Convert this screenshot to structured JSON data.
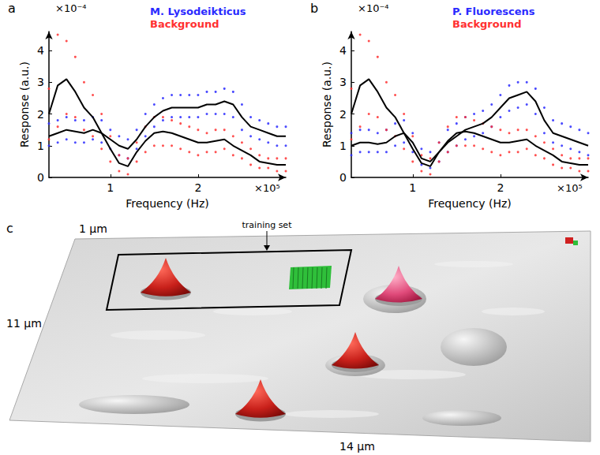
{
  "chart_data": [
    {
      "type": "scatter",
      "panel": "a",
      "x_label": "Frequency (Hz)",
      "y_label": "Response (a.u.)",
      "x_unit_label": "×10⁵",
      "y_unit_label": "×10⁻⁴",
      "xlim": [
        0.3,
        3.0
      ],
      "xticks": [
        1,
        2
      ],
      "ylim": [
        0,
        4.6
      ],
      "yticks": [
        0,
        1,
        2,
        3,
        4
      ],
      "grid": false,
      "legend": "top",
      "series": [
        {
          "name": "M. Lysodeikticus",
          "type": "scatter",
          "color": "#2a2aff",
          "marker": "dot",
          "x": [
            0.3,
            0.4,
            0.5,
            0.6,
            0.7,
            0.8,
            0.9,
            1.0,
            1.1,
            1.2,
            1.3,
            1.4,
            1.5,
            1.6,
            1.7,
            1.8,
            1.9,
            2.0,
            2.1,
            2.2,
            2.3,
            2.4,
            2.5,
            2.6,
            2.7,
            2.8,
            2.9,
            3.0,
            0.3,
            0.4,
            0.5,
            0.6,
            0.7,
            0.8,
            0.9,
            1.0,
            1.1,
            1.2,
            1.3,
            1.4,
            1.5,
            1.6,
            1.7,
            1.8,
            1.9,
            2.0,
            2.1,
            2.2,
            2.3,
            2.4,
            2.5,
            2.6,
            2.7,
            2.8,
            2.9,
            3.0
          ],
          "values": [
            1.7,
            1.8,
            1.9,
            1.8,
            1.8,
            1.9,
            1.8,
            1.5,
            1.3,
            1.2,
            1.5,
            2.0,
            2.3,
            2.5,
            2.6,
            2.6,
            2.6,
            2.6,
            2.7,
            2.7,
            2.8,
            2.7,
            2.3,
            1.9,
            1.8,
            1.7,
            1.6,
            1.6,
            1.0,
            1.1,
            1.2,
            1.1,
            1.1,
            1.2,
            1.1,
            0.9,
            0.7,
            0.6,
            0.9,
            1.3,
            1.6,
            1.8,
            1.9,
            1.9,
            1.9,
            1.9,
            2.0,
            2.0,
            2.0,
            1.9,
            1.5,
            1.3,
            1.2,
            1.1,
            1.0,
            1.0
          ]
        },
        {
          "name": "Background",
          "type": "scatter",
          "color": "#ff3030",
          "marker": "dot",
          "x": [
            0.3,
            0.4,
            0.5,
            0.6,
            0.7,
            0.8,
            0.9,
            1.0,
            1.1,
            1.2,
            1.3,
            1.4,
            1.5,
            1.6,
            1.7,
            1.8,
            1.9,
            2.0,
            2.1,
            2.2,
            2.3,
            2.4,
            2.5,
            2.6,
            2.7,
            2.8,
            2.9,
            3.0,
            0.3,
            0.4,
            0.5,
            0.6,
            0.7,
            0.8,
            0.9,
            1.0,
            1.1,
            1.2,
            1.3,
            1.4,
            1.5,
            1.6,
            1.7,
            1.8,
            1.9,
            2.0,
            2.1,
            2.2,
            2.3,
            2.4,
            2.5,
            2.6,
            2.7,
            2.8,
            2.9,
            3.0
          ],
          "values": [
            2.8,
            4.5,
            4.3,
            3.8,
            3.0,
            2.6,
            2.0,
            1.3,
            0.7,
            0.6,
            1.1,
            1.6,
            1.9,
            1.9,
            1.8,
            1.7,
            1.6,
            1.5,
            1.4,
            1.5,
            1.5,
            1.3,
            1.1,
            0.9,
            0.7,
            0.6,
            0.6,
            0.6,
            1.2,
            1.6,
            2.0,
            1.9,
            1.5,
            1.3,
            0.9,
            0.5,
            0.2,
            0.1,
            0.5,
            0.8,
            1.0,
            1.0,
            1.0,
            0.9,
            0.8,
            0.7,
            0.8,
            0.8,
            0.9,
            0.7,
            0.6,
            0.4,
            0.3,
            0.3,
            0.2,
            0.2
          ]
        },
        {
          "type": "line",
          "color": "#000000",
          "line_style": "solid",
          "x": [
            0.3,
            0.4,
            0.5,
            0.6,
            0.7,
            0.8,
            0.9,
            1.0,
            1.1,
            1.2,
            1.3,
            1.4,
            1.5,
            1.6,
            1.7,
            1.8,
            1.9,
            2.0,
            2.1,
            2.2,
            2.3,
            2.4,
            2.5,
            2.6,
            2.7,
            2.8,
            2.9,
            3.0
          ],
          "values": [
            1.3,
            1.4,
            1.5,
            1.45,
            1.4,
            1.5,
            1.4,
            1.2,
            1.0,
            0.9,
            1.2,
            1.6,
            1.9,
            2.1,
            2.2,
            2.2,
            2.2,
            2.2,
            2.3,
            2.3,
            2.4,
            2.3,
            1.9,
            1.6,
            1.5,
            1.4,
            1.3,
            1.3
          ]
        },
        {
          "type": "line",
          "color": "#000000",
          "line_style": "solid",
          "x": [
            0.3,
            0.4,
            0.5,
            0.6,
            0.7,
            0.8,
            0.9,
            1.0,
            1.1,
            1.2,
            1.3,
            1.4,
            1.5,
            1.6,
            1.7,
            1.8,
            1.9,
            2.0,
            2.1,
            2.2,
            2.3,
            2.4,
            2.5,
            2.6,
            2.7,
            2.8,
            2.9,
            3.0
          ],
          "values": [
            2.0,
            2.9,
            3.1,
            2.7,
            2.2,
            1.9,
            1.4,
            0.9,
            0.45,
            0.35,
            0.8,
            1.15,
            1.4,
            1.45,
            1.4,
            1.3,
            1.2,
            1.1,
            1.1,
            1.15,
            1.2,
            1.0,
            0.85,
            0.7,
            0.5,
            0.45,
            0.4,
            0.4
          ]
        }
      ]
    },
    {
      "type": "scatter",
      "panel": "b",
      "x_label": "Frequency (Hz)",
      "y_label": "Response (a.u.)",
      "x_unit_label": "×10⁵",
      "y_unit_label": "×10⁻⁴",
      "xlim": [
        0.3,
        3.0
      ],
      "xticks": [
        1,
        2
      ],
      "ylim": [
        0,
        4.6
      ],
      "yticks": [
        0,
        1,
        2,
        3,
        4
      ],
      "grid": false,
      "legend": "top",
      "series": [
        {
          "name": "P. Fluorescens",
          "type": "scatter",
          "color": "#2a2aff",
          "marker": "dot",
          "x": [
            0.3,
            0.4,
            0.5,
            0.6,
            0.7,
            0.8,
            0.9,
            1.0,
            1.1,
            1.2,
            1.3,
            1.4,
            1.5,
            1.6,
            1.7,
            1.8,
            1.9,
            2.0,
            2.1,
            2.2,
            2.3,
            2.4,
            2.5,
            2.6,
            2.7,
            2.8,
            2.9,
            3.0,
            0.3,
            0.4,
            0.5,
            0.6,
            0.7,
            0.8,
            0.9,
            1.0,
            1.1,
            1.2,
            1.3,
            1.4,
            1.5,
            1.6,
            1.7,
            1.8,
            1.9,
            2.0,
            2.1,
            2.2,
            2.3,
            2.4,
            2.5,
            2.6,
            2.7,
            2.8,
            2.9,
            3.0
          ],
          "values": [
            1.4,
            1.5,
            1.5,
            1.4,
            1.5,
            1.7,
            1.8,
            1.4,
            0.9,
            0.8,
            1.1,
            1.5,
            1.7,
            1.9,
            2.0,
            2.1,
            2.3,
            2.6,
            2.9,
            3.0,
            3.0,
            2.8,
            2.2,
            1.8,
            1.7,
            1.6,
            1.5,
            1.4,
            0.7,
            0.8,
            0.8,
            0.8,
            0.8,
            1.0,
            1.1,
            0.8,
            0.4,
            0.3,
            0.5,
            0.8,
            1.0,
            1.2,
            1.3,
            1.4,
            1.6,
            1.9,
            2.1,
            2.2,
            2.3,
            2.0,
            1.4,
            1.1,
            1.0,
            0.9,
            0.8,
            0.7
          ]
        },
        {
          "name": "Background",
          "type": "scatter",
          "color": "#ff3030",
          "marker": "dot",
          "x": [
            0.3,
            0.4,
            0.5,
            0.6,
            0.7,
            0.8,
            0.9,
            1.0,
            1.1,
            1.2,
            1.3,
            1.4,
            1.5,
            1.6,
            1.7,
            1.8,
            1.9,
            2.0,
            2.1,
            2.2,
            2.3,
            2.4,
            2.5,
            2.6,
            2.7,
            2.8,
            2.9,
            3.0,
            0.3,
            0.4,
            0.5,
            0.6,
            0.7,
            0.8,
            0.9,
            1.0,
            1.1,
            1.2,
            1.3,
            1.4,
            1.5,
            1.6,
            1.7,
            1.8,
            1.9,
            2.0,
            2.1,
            2.2,
            2.3,
            2.4,
            2.5,
            2.6,
            2.7,
            2.8,
            2.9,
            3.0
          ],
          "values": [
            2.8,
            4.5,
            4.3,
            3.8,
            3.0,
            2.6,
            2.0,
            1.3,
            0.7,
            0.6,
            1.1,
            1.6,
            1.9,
            1.9,
            1.8,
            1.7,
            1.6,
            1.5,
            1.4,
            1.5,
            1.5,
            1.3,
            1.1,
            0.9,
            0.7,
            0.6,
            0.6,
            0.6,
            1.2,
            1.6,
            2.0,
            1.9,
            1.5,
            1.3,
            0.9,
            0.5,
            0.2,
            0.1,
            0.5,
            0.8,
            1.0,
            1.0,
            1.0,
            0.9,
            0.8,
            0.7,
            0.8,
            0.8,
            0.9,
            0.7,
            0.6,
            0.4,
            0.3,
            0.3,
            0.2,
            0.2
          ]
        },
        {
          "type": "line",
          "color": "#000000",
          "line_style": "solid",
          "x": [
            0.3,
            0.4,
            0.5,
            0.6,
            0.7,
            0.8,
            0.9,
            1.0,
            1.1,
            1.2,
            1.3,
            1.4,
            1.5,
            1.6,
            1.7,
            1.8,
            1.9,
            2.0,
            2.1,
            2.2,
            2.3,
            2.4,
            2.5,
            2.6,
            2.7,
            2.8,
            2.9,
            3.0
          ],
          "values": [
            1.0,
            1.1,
            1.1,
            1.05,
            1.1,
            1.3,
            1.4,
            1.1,
            0.6,
            0.5,
            0.8,
            1.1,
            1.3,
            1.5,
            1.6,
            1.7,
            1.9,
            2.2,
            2.5,
            2.6,
            2.7,
            2.4,
            1.8,
            1.4,
            1.3,
            1.2,
            1.1,
            1.0
          ]
        },
        {
          "type": "line",
          "color": "#000000",
          "line_style": "solid",
          "x": [
            0.3,
            0.4,
            0.5,
            0.6,
            0.7,
            0.8,
            0.9,
            1.0,
            1.1,
            1.2,
            1.3,
            1.4,
            1.5,
            1.6,
            1.7,
            1.8,
            1.9,
            2.0,
            2.1,
            2.2,
            2.3,
            2.4,
            2.5,
            2.6,
            2.7,
            2.8,
            2.9,
            3.0
          ],
          "values": [
            2.0,
            2.9,
            3.1,
            2.7,
            2.2,
            1.9,
            1.4,
            0.9,
            0.45,
            0.35,
            0.8,
            1.15,
            1.4,
            1.45,
            1.4,
            1.3,
            1.2,
            1.1,
            1.1,
            1.15,
            1.2,
            1.0,
            0.85,
            0.7,
            0.5,
            0.45,
            0.4,
            0.4
          ]
        }
      ]
    }
  ],
  "panel_c": {
    "panel": "c",
    "scale_labels": [
      "1 µm",
      "11 µm",
      "14 µm"
    ],
    "annotation": "training set"
  }
}
